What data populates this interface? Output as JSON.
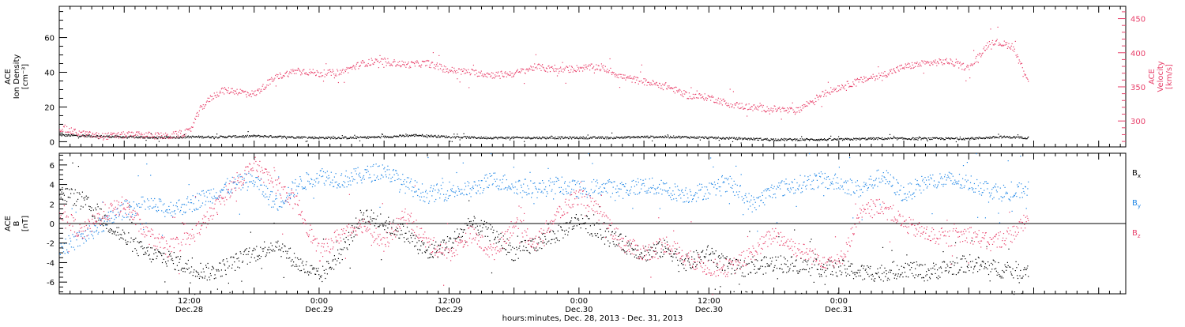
{
  "chart_data": [
    {
      "type": "scatter",
      "panel": "top",
      "left_axis": {
        "label_lines": [
          "ACE",
          "Ion Density",
          "[cm⁻³]"
        ],
        "range": [
          -3,
          78
        ],
        "ticks": [
          0,
          20,
          40,
          60
        ],
        "tick_labels": [
          "0",
          "20",
          "40",
          "60"
        ],
        "minor_step": 5,
        "color": "#000000"
      },
      "right_axis": {
        "label_lines": [
          "ACE",
          "Velocity",
          "[km/s]"
        ],
        "range": [
          262,
          468
        ],
        "ticks": [
          300,
          350,
          400,
          450
        ],
        "tick_labels": [
          "300",
          "350",
          "400",
          "450"
        ],
        "minor_step": 10,
        "color": "#e8416b"
      },
      "series": [
        {
          "key": "density",
          "axis": "left",
          "color": "#000000",
          "x_hours": [
            0,
            3,
            6,
            9,
            12,
            15,
            18,
            21,
            24,
            27,
            30,
            33,
            36,
            39,
            42,
            45,
            48,
            51,
            54,
            57,
            60,
            63,
            66,
            69,
            72,
            75,
            78,
            81,
            84,
            87,
            89.5
          ],
          "values": [
            4,
            3.5,
            3,
            2.5,
            3,
            3,
            3.5,
            3,
            2.5,
            2.5,
            3,
            4,
            3,
            2.5,
            2.5,
            2.5,
            2.5,
            2.5,
            3,
            3,
            2.5,
            2,
            1.5,
            1.5,
            1.5,
            2,
            2,
            2,
            2,
            3,
            2.5
          ]
        },
        {
          "key": "velocity",
          "axis": "right",
          "color": "#e8416b",
          "x_hours": [
            0,
            2,
            4,
            6,
            8,
            10,
            12,
            13,
            14,
            15,
            16,
            18,
            20,
            22,
            24,
            26,
            28,
            30,
            32,
            34,
            36,
            38,
            40,
            42,
            44,
            46,
            48,
            50,
            52,
            54,
            56,
            58,
            60,
            62,
            64,
            66,
            68,
            69.5,
            70.5,
            72,
            74,
            76,
            78,
            80,
            82,
            84,
            86,
            88,
            89.5
          ],
          "values": [
            290,
            282,
            278,
            280,
            280,
            278,
            285,
            318,
            335,
            345,
            345,
            340,
            365,
            375,
            370,
            372,
            385,
            388,
            383,
            385,
            375,
            372,
            368,
            370,
            380,
            375,
            378,
            380,
            365,
            358,
            352,
            338,
            335,
            325,
            320,
            318,
            315,
            330,
            340,
            350,
            360,
            368,
            380,
            385,
            388,
            378,
            418,
            410,
            360
          ]
        }
      ]
    },
    {
      "type": "scatter",
      "panel": "bottom",
      "left_axis": {
        "label_lines": [
          "ACE",
          "B",
          "[nT]"
        ],
        "range": [
          -7.2,
          7.2
        ],
        "ticks": [
          -6,
          -4,
          -2,
          0,
          2,
          4,
          6
        ],
        "tick_labels": [
          "-6",
          "-4",
          "-2",
          "0",
          "2",
          "4",
          "6"
        ],
        "minor_step": 0.5,
        "color": "#000000"
      },
      "legend": [
        {
          "label": "B",
          "sub": "x",
          "color": "#000000"
        },
        {
          "label": "B",
          "sub": "y",
          "color": "#1f86e6"
        },
        {
          "label": "B",
          "sub": "z",
          "color": "#e8416b"
        }
      ],
      "series": [
        {
          "key": "bx",
          "color": "#000000",
          "x_hours": [
            0,
            2,
            4,
            6,
            8,
            10,
            12,
            14,
            16,
            18,
            20,
            22,
            24,
            26,
            28,
            30,
            32,
            34,
            36,
            38,
            40,
            42,
            44,
            46,
            48,
            50,
            52,
            54,
            56,
            58,
            60,
            62,
            64,
            66,
            68,
            70,
            72,
            74,
            76,
            78,
            80,
            82,
            84,
            86,
            88,
            89.5
          ],
          "values": [
            3.2,
            2.5,
            0.5,
            -1.5,
            -3,
            -3.5,
            -4.5,
            -5,
            -4,
            -3,
            -2,
            -4,
            -5.5,
            -3,
            1,
            0,
            -1,
            -3,
            -2,
            0,
            -1,
            -3,
            -2,
            -1,
            0.5,
            -1,
            -2,
            -3,
            -2.5,
            -4,
            -3,
            -4.5,
            -4.5,
            -4,
            -4.2,
            -4.5,
            -4.5,
            -5,
            -5,
            -4.5,
            -5,
            -4.5,
            -4,
            -4.5,
            -4.8,
            -4.6
          ]
        },
        {
          "key": "by",
          "color": "#1f86e6",
          "x_hours": [
            0,
            2,
            4,
            6,
            8,
            10,
            12,
            14,
            16,
            18,
            20,
            22,
            24,
            26,
            28,
            30,
            32,
            34,
            36,
            38,
            40,
            42,
            44,
            46,
            48,
            50,
            52,
            54,
            56,
            58,
            60,
            62,
            64,
            66,
            68,
            70,
            72,
            74,
            76,
            78,
            80,
            82,
            84,
            86,
            88,
            89.5
          ],
          "values": [
            -2.5,
            -1.5,
            0,
            1.5,
            2,
            1.5,
            2,
            3,
            4,
            4.5,
            2,
            4,
            5,
            4.5,
            5,
            5.5,
            4,
            3,
            3.5,
            3.5,
            4.5,
            4,
            3.5,
            4,
            3.5,
            3.8,
            3.5,
            4,
            3.5,
            3,
            3.5,
            4,
            2,
            3.5,
            4,
            4.5,
            4.2,
            3.5,
            5,
            3,
            4.3,
            4.5,
            4.2,
            3.5,
            3,
            3.8
          ]
        },
        {
          "key": "bz",
          "color": "#e8416b",
          "x_hours": [
            0,
            2,
            4,
            6,
            8,
            10,
            12,
            14,
            16,
            18,
            20,
            22,
            24,
            26,
            28,
            30,
            32,
            34,
            36,
            38,
            40,
            42,
            44,
            46,
            48,
            50,
            52,
            54,
            56,
            58,
            60,
            62,
            64,
            66,
            68,
            70,
            72,
            74,
            76,
            78,
            80,
            82,
            84,
            86,
            88,
            89.5
          ],
          "values": [
            1.5,
            -1,
            1,
            2,
            -1,
            -2.5,
            -1.5,
            1,
            4,
            6,
            4,
            2,
            -3,
            -1,
            0,
            -2,
            1,
            -2,
            -3,
            -1,
            -3,
            0,
            -2,
            1,
            3,
            1,
            -2,
            -3,
            -2,
            -3.5,
            -4.5,
            -4.5,
            -3,
            -1,
            -2.5,
            -3.5,
            -4,
            1,
            2,
            0,
            -1,
            -1.5,
            -1,
            -2,
            -1,
            0.5
          ]
        }
      ]
    }
  ],
  "time_axis": {
    "range_hours": [
      0,
      98.5
    ],
    "major_ticks": [
      {
        "hour": 12,
        "time": "12:00",
        "date": "Dec.28"
      },
      {
        "hour": 24,
        "time": "0:00",
        "date": "Dec.29"
      },
      {
        "hour": 36,
        "time": "12:00",
        "date": "Dec.29"
      },
      {
        "hour": 48,
        "time": "0:00",
        "date": "Dec.30"
      },
      {
        "hour": 60,
        "time": "12:00",
        "date": "Dec.30"
      },
      {
        "hour": 72,
        "time": "0:00",
        "date": "Dec.31"
      }
    ],
    "minor_step_hours": 1,
    "title": "hours:minutes, Dec. 28, 2013 - Dec. 31, 2013"
  }
}
